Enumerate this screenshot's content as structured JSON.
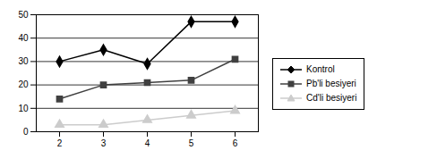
{
  "chart_data": {
    "type": "line",
    "categories": [
      "2",
      "3",
      "4",
      "5",
      "6"
    ],
    "series": [
      {
        "name": "Kontrol",
        "color": "#000000",
        "marker": "diamond",
        "values": [
          30,
          35,
          29,
          47,
          47
        ]
      },
      {
        "name": "Pb'li besiyeri",
        "color": "#404040",
        "marker": "square",
        "values": [
          14,
          20,
          21,
          22,
          31
        ]
      },
      {
        "name": "Cd'li besiyeri",
        "color": "#cccccc",
        "marker": "triangle",
        "values": [
          3,
          3,
          5,
          7,
          9
        ]
      }
    ],
    "ylim": [
      0,
      50
    ],
    "yticks": [
      0,
      10,
      20,
      30,
      40,
      50
    ],
    "grid": true,
    "legend": "right"
  }
}
